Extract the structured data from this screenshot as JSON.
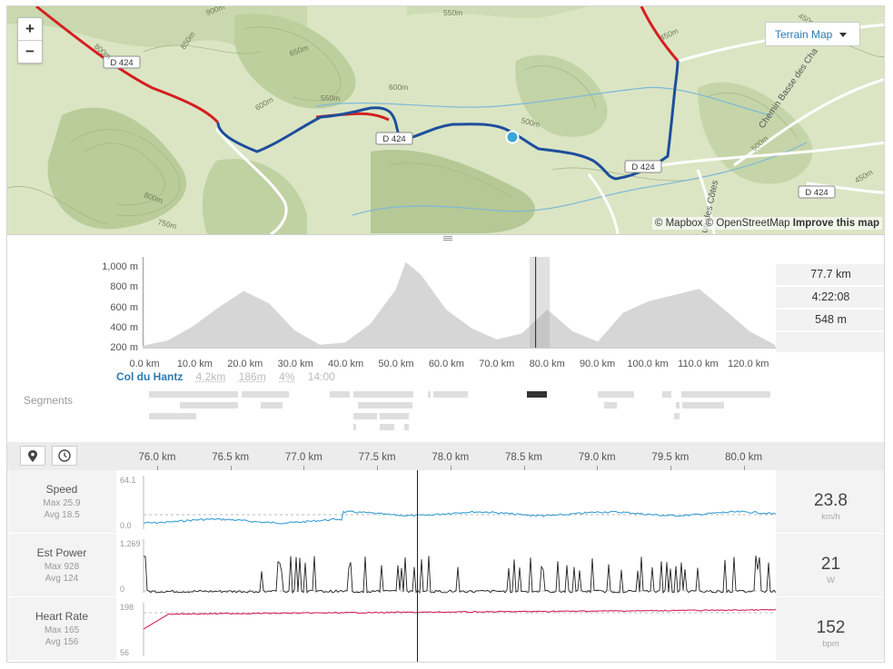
{
  "map": {
    "zoom_in": "+",
    "zoom_out": "−",
    "style_button": "Terrain Map",
    "road_labels": [
      "D 424",
      "D 424",
      "D 424",
      "D 424"
    ],
    "street_labels": [
      "Chemin Basse des Cha",
      "ue des Côtes"
    ],
    "contours": [
      "900m",
      "850m",
      "800m",
      "650m",
      "600m",
      "550m",
      "600m",
      "500m",
      "800m",
      "750m",
      "550m",
      "450m",
      "500m",
      "450m",
      "450m"
    ],
    "attribution": {
      "mapbox": "© Mapbox",
      "osm": "© OpenStreetMap",
      "improve": "Improve this map"
    },
    "colors": {
      "route": "#1d4e9b",
      "road_red": "#d41f1f",
      "marker": "#3ba6d8"
    }
  },
  "elevation": {
    "y_ticks": [
      "1,000 m",
      "800 m",
      "600 m",
      "400 m",
      "200 m"
    ],
    "x_ticks": [
      "0.0 km",
      "10.0 km",
      "20.0 km",
      "30.0 km",
      "40.0 km",
      "50.0 km",
      "60.0 km",
      "70.0 km",
      "80.0 km",
      "90.0 km",
      "100.0 km",
      "110.0 km",
      "120.0 km"
    ],
    "stats": {
      "distance": "77.7 km",
      "time": "4:22:08",
      "elevation": "548 m"
    },
    "segment": {
      "name": "Col du Hantz",
      "distance": "4.2km",
      "elev": "186m",
      "grade": "4%",
      "time": "14:00"
    },
    "segments_label": "Segments"
  },
  "chart_data": {
    "type": "area",
    "xlabel": "",
    "ylabel": "",
    "xlim": [
      0,
      125
    ],
    "ylim": [
      200,
      1000
    ],
    "x": [
      0,
      5,
      10,
      15,
      20,
      25,
      30,
      35,
      40,
      45,
      50,
      52,
      55,
      60,
      65,
      70,
      75,
      80,
      85,
      90,
      95,
      100,
      105,
      110,
      115,
      120,
      125
    ],
    "y": [
      210,
      260,
      400,
      580,
      740,
      620,
      360,
      220,
      240,
      420,
      750,
      1020,
      900,
      560,
      380,
      270,
      330,
      560,
      350,
      250,
      530,
      640,
      700,
      760,
      560,
      350,
      220
    ],
    "highlight_range_km": [
      76.5,
      80.5
    ],
    "cursor_km": 77.7
  },
  "streams": {
    "x_ticks": [
      "76.0 km",
      "76.5 km",
      "77.0 km",
      "77.5 km",
      "78.0 km",
      "78.5 km",
      "79.0 km",
      "79.5 km",
      "80.0 km"
    ],
    "rows": [
      {
        "title": "Speed",
        "max": "Max 25.9",
        "avg": "Avg 18.5",
        "ymax": "64.1",
        "ymin": "0.0",
        "value": "23.8",
        "unit": "km/h",
        "color": "#3a9fd4"
      },
      {
        "title": "Est Power",
        "max": "Max 928",
        "avg": "Avg 124",
        "ymax": "1,269",
        "ymin": "0",
        "value": "21",
        "unit": "W",
        "color": "#222222"
      },
      {
        "title": "Heart Rate",
        "max": "Max 165",
        "avg": "Avg 156",
        "ymax": "198",
        "ymin": "56",
        "value": "152",
        "unit": "bpm",
        "color": "#d4245c"
      }
    ]
  }
}
